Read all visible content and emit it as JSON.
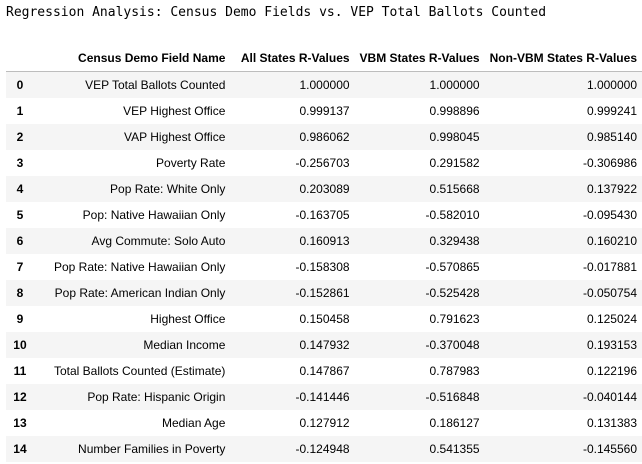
{
  "title": "Regression Analysis: Census Demo Fields vs. VEP Total Ballots Counted",
  "table": {
    "headers": [
      "",
      "Census Demo Field Name",
      "All States R-Values",
      "VBM States R-Values",
      "Non-VBM States R-Values"
    ],
    "rows": [
      {
        "index": "0",
        "field": "VEP Total Ballots Counted",
        "all": "1.000000",
        "vbm": "1.000000",
        "nonvbm": "1.000000"
      },
      {
        "index": "1",
        "field": "VEP Highest Office",
        "all": "0.999137",
        "vbm": "0.998896",
        "nonvbm": "0.999241"
      },
      {
        "index": "2",
        "field": "VAP Highest Office",
        "all": "0.986062",
        "vbm": "0.998045",
        "nonvbm": "0.985140"
      },
      {
        "index": "3",
        "field": "Poverty Rate",
        "all": "-0.256703",
        "vbm": "0.291582",
        "nonvbm": "-0.306986"
      },
      {
        "index": "4",
        "field": "Pop Rate: White Only",
        "all": "0.203089",
        "vbm": "0.515668",
        "nonvbm": "0.137922"
      },
      {
        "index": "5",
        "field": "Pop: Native Hawaiian Only",
        "all": "-0.163705",
        "vbm": "-0.582010",
        "nonvbm": "-0.095430"
      },
      {
        "index": "6",
        "field": "Avg Commute: Solo Auto",
        "all": "0.160913",
        "vbm": "0.329438",
        "nonvbm": "0.160210"
      },
      {
        "index": "7",
        "field": "Pop Rate: Native Hawaiian Only",
        "all": "-0.158308",
        "vbm": "-0.570865",
        "nonvbm": "-0.017881"
      },
      {
        "index": "8",
        "field": "Pop Rate: American Indian Only",
        "all": "-0.152861",
        "vbm": "-0.525428",
        "nonvbm": "-0.050754"
      },
      {
        "index": "9",
        "field": "Highest Office",
        "all": "0.150458",
        "vbm": "0.791623",
        "nonvbm": "0.125024"
      },
      {
        "index": "10",
        "field": "Median Income",
        "all": "0.147932",
        "vbm": "-0.370048",
        "nonvbm": "0.193153"
      },
      {
        "index": "11",
        "field": "Total Ballots Counted (Estimate)",
        "all": "0.147867",
        "vbm": "0.787983",
        "nonvbm": "0.122196"
      },
      {
        "index": "12",
        "field": "Pop Rate: Hispanic Origin",
        "all": "-0.141446",
        "vbm": "-0.516848",
        "nonvbm": "-0.040144"
      },
      {
        "index": "13",
        "field": "Median Age",
        "all": "0.127912",
        "vbm": "0.186127",
        "nonvbm": "0.131383"
      },
      {
        "index": "14",
        "field": "Number Families in Poverty",
        "all": "-0.124948",
        "vbm": "0.541355",
        "nonvbm": "-0.145560"
      }
    ]
  }
}
